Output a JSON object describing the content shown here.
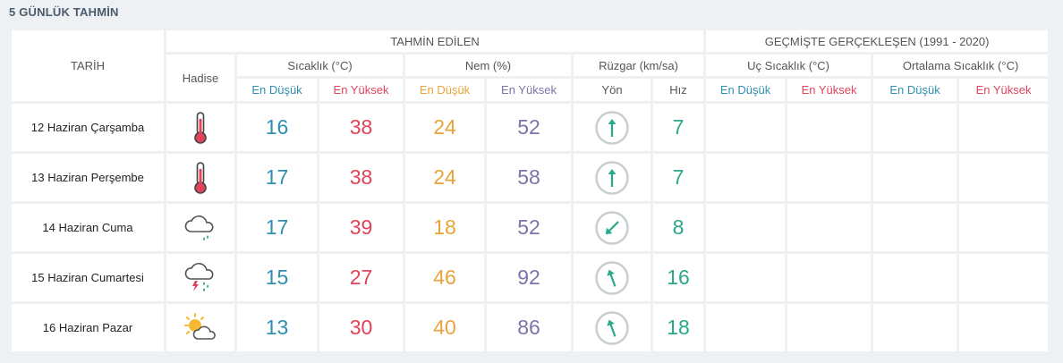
{
  "title": "5 GÜNLÜK TAHMİN",
  "headers": {
    "tarih": "TARİH",
    "tahmin": "TAHMİN EDİLEN",
    "gecmis": "GEÇMİŞTE GERÇEKLEŞEN (1991 - 2020)",
    "hadise": "Hadise",
    "sicaklik": "Sıcaklık (°C)",
    "nem": "Nem (%)",
    "ruzgar": "Rüzgar (km/sa)",
    "uc_sicaklik": "Uç Sıcaklık (°C)",
    "ort_sicaklik": "Ortalama Sıcaklık (°C)",
    "en_dusuk": "En Düşük",
    "en_yuksek": "En Yüksek",
    "yon": "Yön",
    "hiz": "Hız"
  },
  "colors": {
    "low_temp": "#2f8fb0",
    "high_temp": "#e0435a",
    "low_humidity": "#e8a33a",
    "high_humidity": "#7b74a8",
    "wind": "#2aa88a"
  },
  "rows": [
    {
      "date": "12 Haziran Çarşamba",
      "icon": "thermometer-hot-icon",
      "t_min": "16",
      "t_max": "38",
      "h_min": "24",
      "h_max": "52",
      "wind_dir": "south-arrow",
      "wind_deg": 180,
      "wind_speed": "7"
    },
    {
      "date": "13 Haziran Perşembe",
      "icon": "thermometer-hot-icon",
      "t_min": "17",
      "t_max": "38",
      "h_min": "24",
      "h_max": "58",
      "wind_dir": "south-arrow",
      "wind_deg": 180,
      "wind_speed": "7"
    },
    {
      "date": "14 Haziran Cuma",
      "icon": "cloud-drizzle-icon",
      "t_min": "17",
      "t_max": "39",
      "h_min": "18",
      "h_max": "52",
      "wind_dir": "northeast-arrow",
      "wind_deg": 45,
      "wind_speed": "8"
    },
    {
      "date": "15 Haziran Cumartesi",
      "icon": "thunderstorm-rain-icon",
      "t_min": "15",
      "t_max": "27",
      "h_min": "46",
      "h_max": "92",
      "wind_dir": "south-southeast-arrow",
      "wind_deg": 160,
      "wind_speed": "16"
    },
    {
      "date": "16 Haziran Pazar",
      "icon": "sun-cloud-icon",
      "t_min": "13",
      "t_max": "30",
      "h_min": "40",
      "h_max": "86",
      "wind_dir": "south-southeast-arrow",
      "wind_deg": 160,
      "wind_speed": "18"
    }
  ]
}
